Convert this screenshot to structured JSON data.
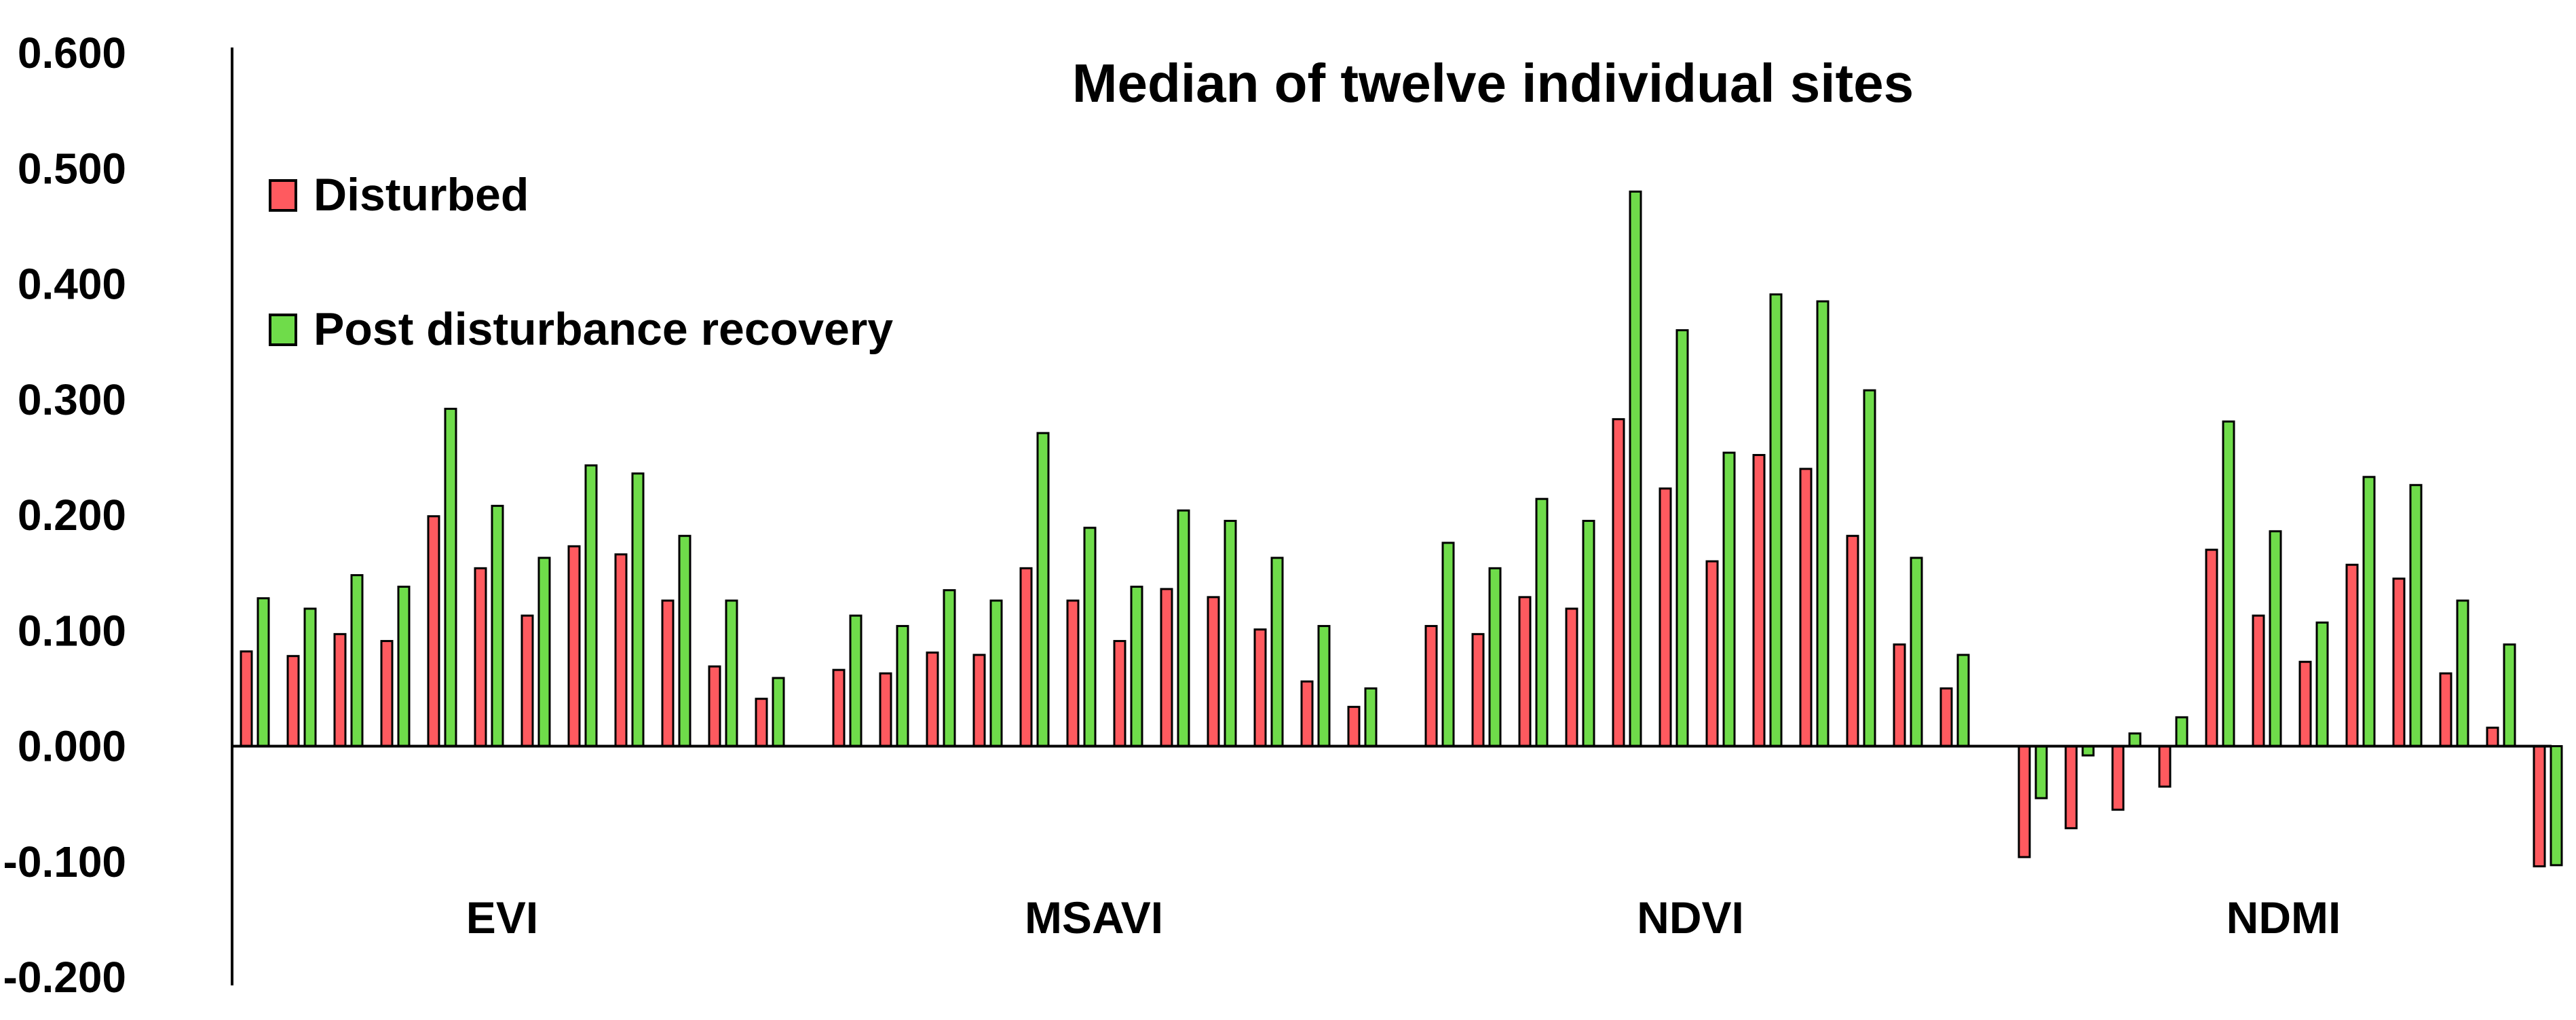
{
  "chart_data": {
    "type": "bar",
    "title": "Median of twelve individual sites",
    "xlabel": "",
    "ylabel": "",
    "ylim": [
      -0.2,
      0.6
    ],
    "yticks": [
      "0.600",
      "0.500",
      "0.400",
      "0.300",
      "0.200",
      "0.100",
      "0.000",
      "-0.100",
      "-0.200"
    ],
    "ytick_values": [
      0.6,
      0.5,
      0.4,
      0.3,
      0.2,
      0.1,
      0.0,
      -0.1,
      -0.2
    ],
    "grid": false,
    "legend_position": "top-left",
    "categories": [
      "EVI",
      "MSAVI",
      "NDVI",
      "NDMI"
    ],
    "sites_per_category": 12,
    "series": [
      {
        "name": "Disturbed",
        "color": "#ff5a5f",
        "values": [
          [
            0.082,
            0.078,
            0.097,
            0.091,
            0.199,
            0.154,
            0.113,
            0.173,
            0.166,
            0.126,
            0.069,
            0.041
          ],
          [
            0.066,
            0.063,
            0.081,
            0.079,
            0.154,
            0.126,
            0.091,
            0.136,
            0.129,
            0.101,
            0.056,
            0.034
          ],
          [
            0.104,
            0.097,
            0.129,
            0.119,
            0.283,
            0.223,
            0.16,
            0.252,
            0.24,
            0.182,
            0.088,
            0.05
          ],
          [
            -0.096,
            -0.071,
            -0.055,
            -0.035,
            0.17,
            0.113,
            0.073,
            0.157,
            0.145,
            0.063,
            0.016,
            -0.104
          ]
        ]
      },
      {
        "name": "Post disturbance recovery",
        "color": "#6fdc4a",
        "values": [
          [
            0.128,
            0.119,
            0.148,
            0.138,
            0.292,
            0.208,
            0.163,
            0.243,
            0.236,
            0.182,
            0.126,
            0.059
          ],
          [
            0.113,
            0.104,
            0.135,
            0.126,
            0.271,
            0.189,
            0.138,
            0.204,
            0.195,
            0.163,
            0.104,
            0.05
          ],
          [
            0.176,
            0.154,
            0.214,
            0.195,
            0.48,
            0.36,
            0.254,
            0.391,
            0.385,
            0.308,
            0.163,
            0.079
          ],
          [
            -0.045,
            -0.008,
            0.011,
            0.025,
            0.281,
            0.186,
            0.107,
            0.233,
            0.226,
            0.126,
            0.088,
            -0.103
          ]
        ]
      }
    ]
  }
}
